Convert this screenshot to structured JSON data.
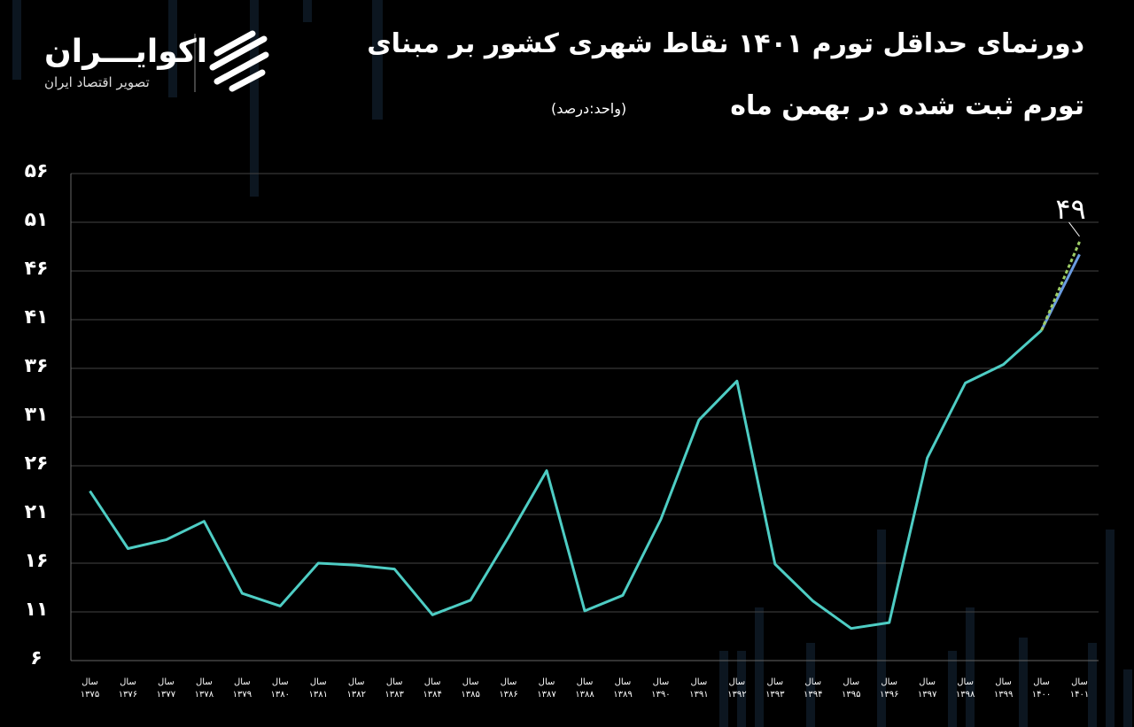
{
  "logo": {
    "name": "اکوایـــران",
    "tagline": "تصویر اقتصاد ایران"
  },
  "chart_data": {
    "type": "line",
    "title": "دورنمای حداقل تورم ۱۴۰۱ نقاط شهری کشور بر مبنای",
    "subtitle": "تورم ثبت شده در بهمن ماه",
    "unit_note": "(واحد:درصد)",
    "categories": [
      "سال ۱۳۷۵",
      "سال ۱۳۷۶",
      "سال ۱۳۷۷",
      "سال ۱۳۷۸",
      "سال ۱۳۷۹",
      "سال ۱۳۸۰",
      "سال ۱۳۸۱",
      "سال ۱۳۸۲",
      "سال ۱۳۸۳",
      "سال ۱۳۸۴",
      "سال ۱۳۸۵",
      "سال ۱۳۸۶",
      "سال ۱۳۸۷",
      "سال ۱۳۸۸",
      "سال ۱۳۸۹",
      "سال ۱۳۹۰",
      "سال ۱۳۹۱",
      "سال ۱۳۹۲",
      "سال ۱۳۹۳",
      "سال ۱۳۹۴",
      "سال ۱۳۹۵",
      "سال ۱۳۹۶",
      "سال ۱۳۹۷",
      "سال ۱۳۹۸",
      "سال ۱۳۹۹",
      "سال ۱۴۰۰",
      "سال ۱۴۰۱"
    ],
    "series": [
      {
        "color": "#4ecdc4",
        "dashed": false,
        "values": [
          23.4,
          17.5,
          18.4,
          20.3,
          12.9,
          11.6,
          16,
          15.8,
          15.4,
          10.7,
          12.2,
          18.7,
          25.5,
          11.1,
          12.7,
          20.5,
          30.7,
          34.7,
          15.9,
          12.1,
          9.3,
          9.9,
          26.8,
          34.5,
          36.4,
          39.9,
          null
        ]
      },
      {
        "color": "#6a9be0",
        "dashed": false,
        "values": [
          null,
          null,
          null,
          null,
          null,
          null,
          null,
          null,
          null,
          null,
          null,
          null,
          null,
          null,
          null,
          null,
          null,
          null,
          null,
          null,
          null,
          null,
          null,
          null,
          null,
          39.9,
          47.7
        ]
      },
      {
        "color": "#9ccc65",
        "dashed": true,
        "values": [
          null,
          null,
          null,
          null,
          null,
          null,
          null,
          null,
          null,
          null,
          null,
          null,
          null,
          null,
          null,
          null,
          null,
          null,
          null,
          null,
          null,
          null,
          null,
          null,
          null,
          39.9,
          49
        ],
        "value_labels": [
          null,
          null,
          null,
          null,
          null,
          null,
          null,
          null,
          null,
          null,
          null,
          null,
          null,
          null,
          null,
          null,
          null,
          null,
          null,
          null,
          null,
          null,
          null,
          null,
          null,
          null,
          "۴۹"
        ]
      }
    ],
    "ylim": [
      6,
      56
    ],
    "yticks": [
      {
        "value": 6,
        "label": "۶"
      },
      {
        "value": 11,
        "label": "۱۱"
      },
      {
        "value": 16,
        "label": "۱۶"
      },
      {
        "value": 21,
        "label": "۲۱"
      },
      {
        "value": 26,
        "label": "۲۶"
      },
      {
        "value": 31,
        "label": "۳۱"
      },
      {
        "value": 36,
        "label": "۳۶"
      },
      {
        "value": 41,
        "label": "۴۱"
      },
      {
        "value": 46,
        "label": "۴۶"
      },
      {
        "value": 51,
        "label": "۵۱"
      },
      {
        "value": 56,
        "label": "۵۶"
      }
    ],
    "grid": true
  }
}
